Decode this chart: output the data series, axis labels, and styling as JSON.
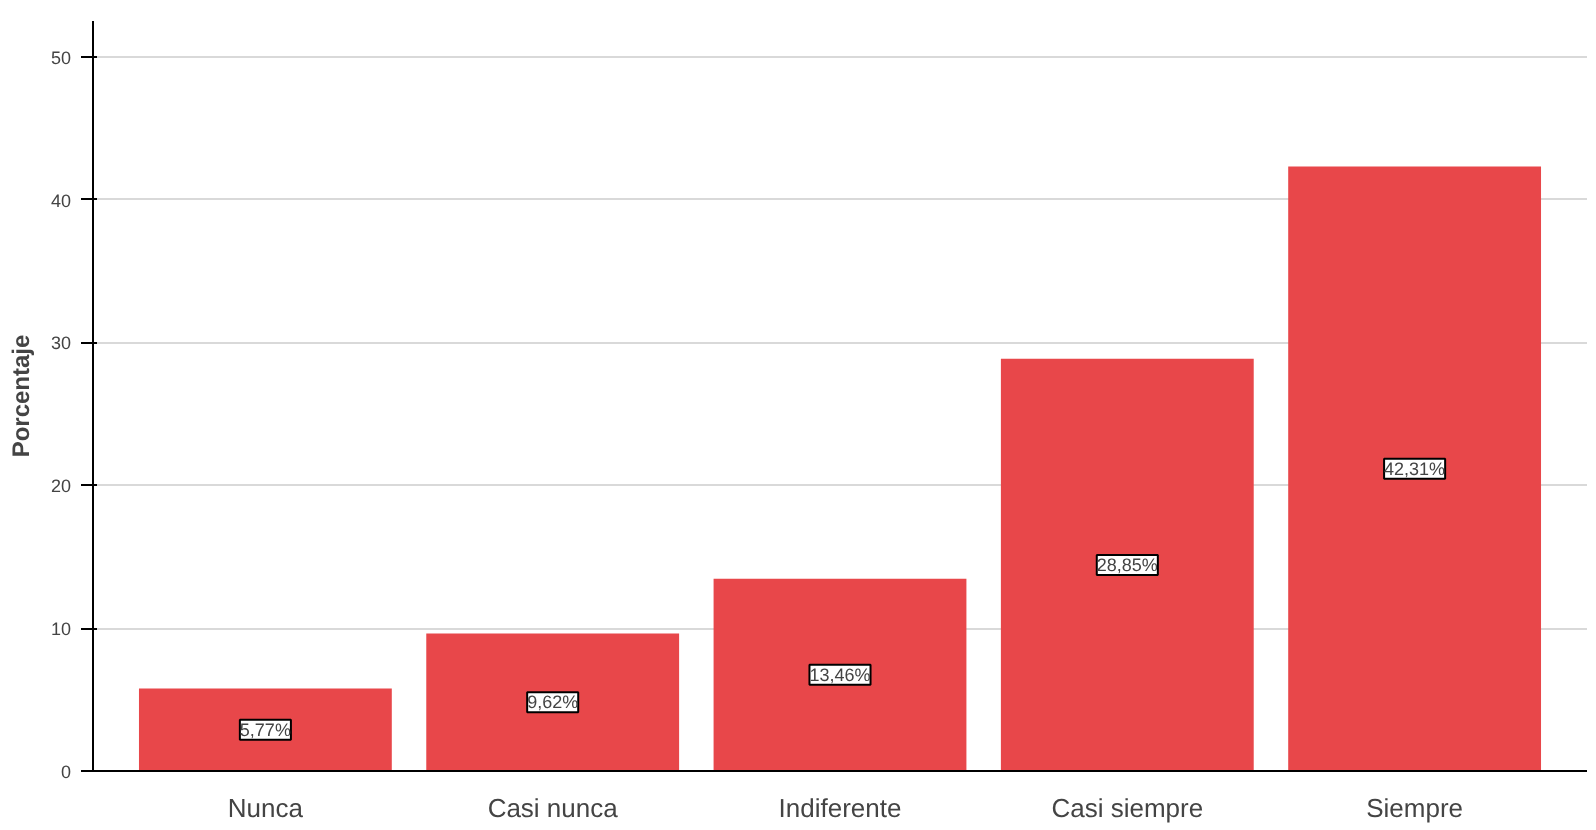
{
  "chart_data": {
    "type": "bar",
    "ylabel": "Porcentaje",
    "categories": [
      "Nunca",
      "Casi nunca",
      "Indiferente",
      "Casi siempre",
      "Siempre"
    ],
    "values": [
      5.77,
      9.62,
      13.46,
      28.85,
      42.31
    ],
    "value_labels": [
      "5,77%",
      "9,62%",
      "13,46%",
      "28,85%",
      "42,31%"
    ],
    "color": "#e8474a",
    "ylim": [
      0,
      52.5
    ],
    "yticks": [
      0,
      10,
      20,
      30,
      40,
      50
    ],
    "grid": "y"
  }
}
